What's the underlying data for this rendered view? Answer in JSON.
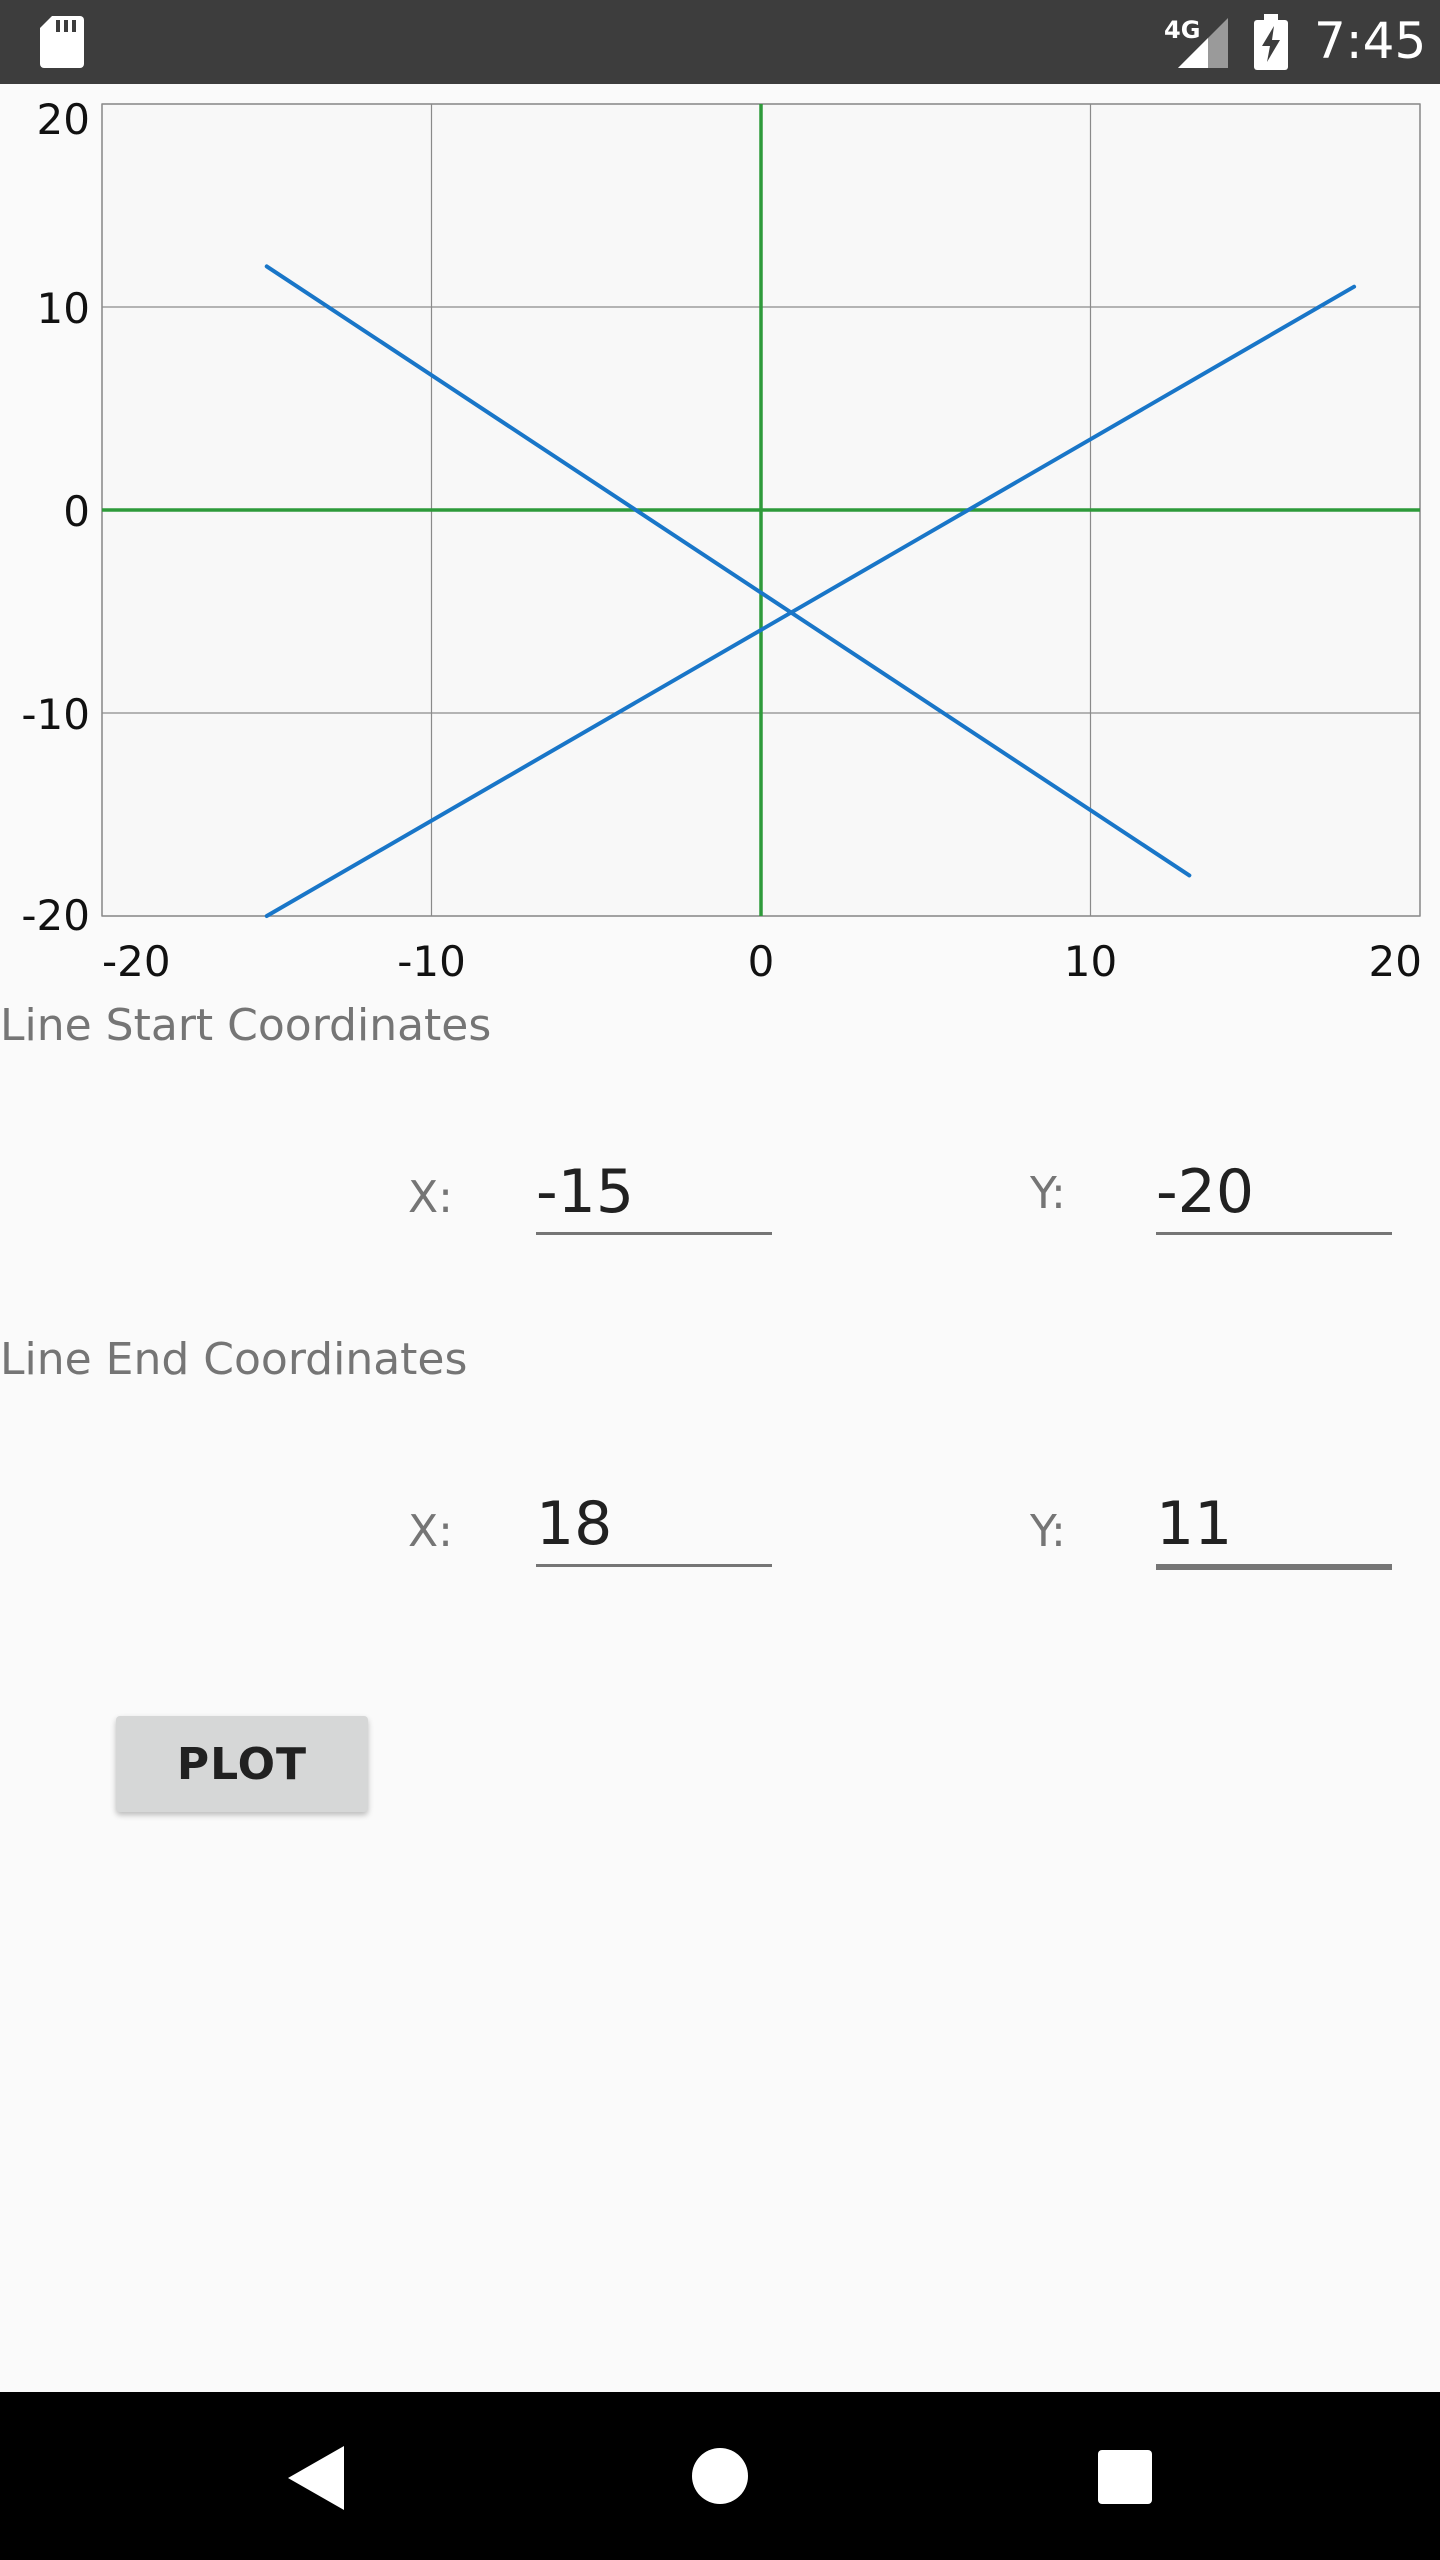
{
  "status_bar": {
    "time": "7:45",
    "network": "4G",
    "icons": [
      "sd-card-icon",
      "cell-signal-icon",
      "battery-charging-icon"
    ]
  },
  "chart_data": {
    "type": "line",
    "xlim": [
      -20,
      20
    ],
    "ylim": [
      -20,
      20
    ],
    "x_ticks": [
      "-20",
      "-10",
      "0",
      "10",
      "20"
    ],
    "y_ticks": [
      "20",
      "10",
      "0",
      "-10",
      "-20"
    ],
    "grid": true,
    "axis_color": "#2e9a3a",
    "series": [
      {
        "color": "#1976c8",
        "x": [
          -15,
          18
        ],
        "y": [
          -20,
          11
        ]
      },
      {
        "color": "#1976c8",
        "x": [
          -15,
          13
        ],
        "y": [
          12,
          -18
        ]
      }
    ]
  },
  "start": {
    "label": "Line Start Coordinates",
    "x_label": "X:",
    "x_value": "-15",
    "y_label": "Y:",
    "y_value": "-20"
  },
  "end": {
    "label": "Line End Coordinates",
    "x_label": "X:",
    "x_value": "18",
    "y_label": "Y:",
    "y_value": "11"
  },
  "plot_button": "PLOT",
  "nav": {
    "icons": [
      "back-icon",
      "home-icon",
      "recents-icon"
    ]
  }
}
